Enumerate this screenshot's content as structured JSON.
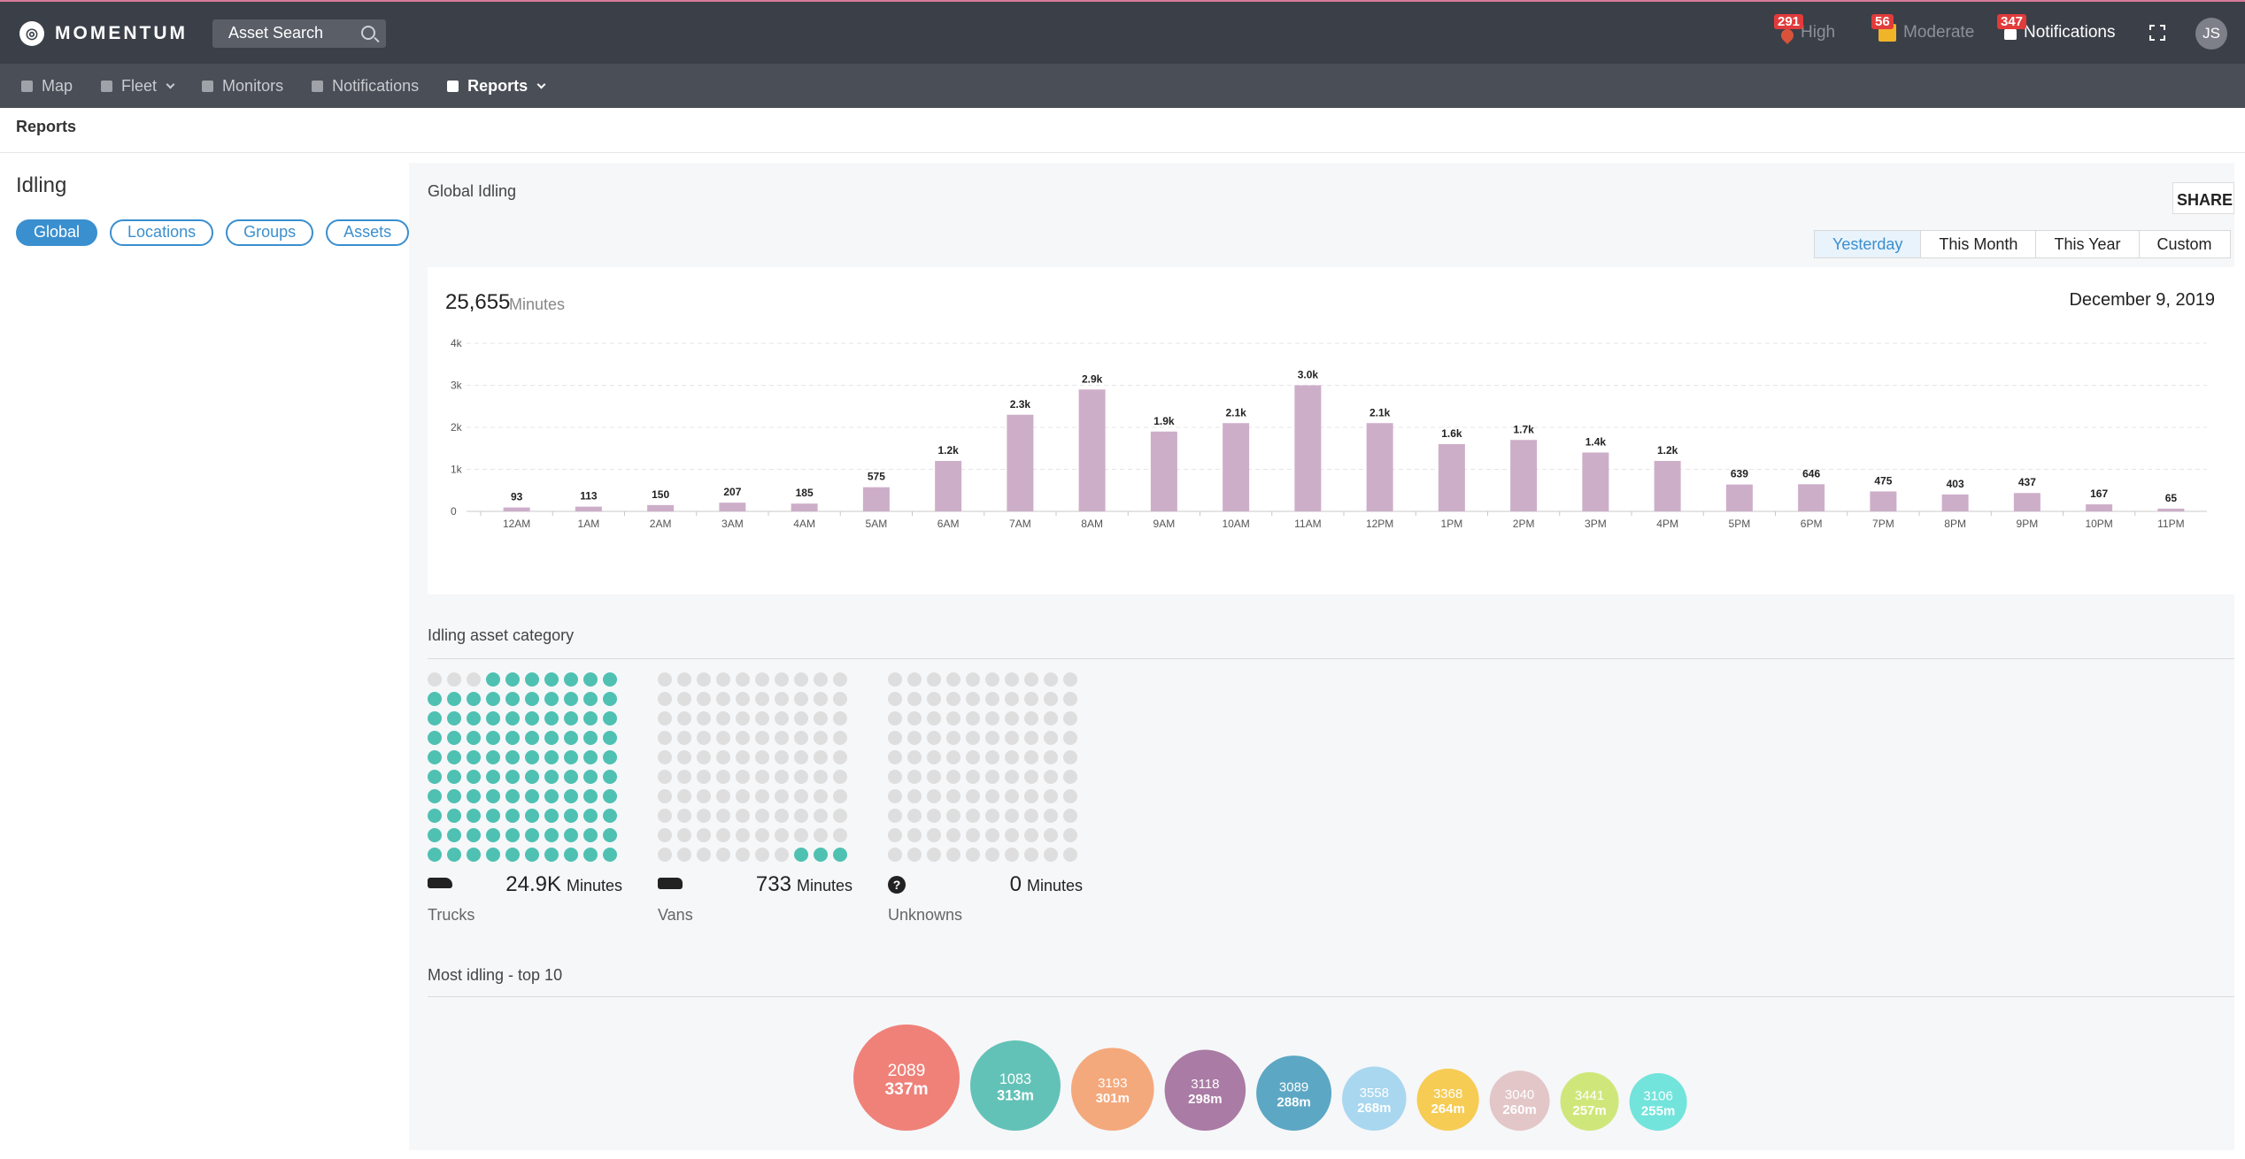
{
  "app": {
    "name": "MOMENTUM"
  },
  "header": {
    "search_label": "Asset Search",
    "alerts": {
      "high": {
        "count": "291",
        "label": "High"
      },
      "moderate": {
        "count": "56",
        "label": "Moderate"
      },
      "notifications": {
        "count": "347",
        "label": "Notifications"
      }
    },
    "avatar_initials": "JS"
  },
  "nav": {
    "items": [
      {
        "label": "Map",
        "icon": "map-icon"
      },
      {
        "label": "Fleet",
        "icon": "car-icon"
      },
      {
        "label": "Monitors",
        "icon": "monitor-icon"
      },
      {
        "label": "Notifications",
        "icon": "bell-icon"
      },
      {
        "label": "Reports",
        "icon": "report-icon"
      }
    ]
  },
  "breadcrumb": "Reports",
  "page": {
    "title": "Idling",
    "filters": [
      "Global",
      "Locations",
      "Groups",
      "Assets"
    ],
    "active_filter": "Global"
  },
  "main": {
    "title": "Global Idling",
    "share_label": "SHARE",
    "ranges": [
      "Yesterday",
      "This Month",
      "This Year",
      "Custom"
    ],
    "active_range": "Yesterday",
    "total_value": "25,655",
    "total_unit": "Minutes",
    "date": "December 9, 2019"
  },
  "chart_data": {
    "type": "bar",
    "categories": [
      "12AM",
      "1AM",
      "2AM",
      "3AM",
      "4AM",
      "5AM",
      "6AM",
      "7AM",
      "8AM",
      "9AM",
      "10AM",
      "11AM",
      "12PM",
      "1PM",
      "2PM",
      "3PM",
      "4PM",
      "5PM",
      "6PM",
      "7PM",
      "8PM",
      "9PM",
      "10PM",
      "11PM"
    ],
    "values": [
      93,
      113,
      150,
      207,
      185,
      575,
      1200,
      2300,
      2900,
      1900,
      2100,
      3000,
      2100,
      1600,
      1700,
      1400,
      1200,
      639,
      646,
      475,
      403,
      437,
      167,
      65
    ],
    "data_labels": [
      "93",
      "113",
      "150",
      "207",
      "185",
      "575",
      "1.2k",
      "2.3k",
      "2.9k",
      "1.9k",
      "2.1k",
      "3.0k",
      "2.1k",
      "1.6k",
      "1.7k",
      "1.4k",
      "1.2k",
      "639",
      "646",
      "475",
      "403",
      "437",
      "167",
      "65"
    ],
    "y_ticks": [
      "0",
      "1k",
      "2k",
      "3k",
      "4k"
    ],
    "ylim": [
      0,
      4000
    ],
    "grid": true,
    "color": "#cdaec9"
  },
  "categories_section": {
    "title": "Idling asset category",
    "items": [
      {
        "name": "Trucks",
        "value": "24.9K",
        "unit": "Minutes",
        "icon": "truck-icon",
        "filled_dots": 97
      },
      {
        "name": "Vans",
        "value": "733",
        "unit": "Minutes",
        "icon": "van-icon",
        "filled_dots": 3
      },
      {
        "name": "Unknowns",
        "value": "0",
        "unit": "Minutes",
        "icon": "question-icon",
        "filled_dots": 0
      }
    ],
    "dot_color": "#4fc1b3"
  },
  "top10": {
    "title": "Most idling - top 10",
    "items": [
      {
        "id": "2089",
        "minutes": 337,
        "label": "337m",
        "color": "#ef8179"
      },
      {
        "id": "1083",
        "minutes": 313,
        "label": "313m",
        "color": "#63c2b7"
      },
      {
        "id": "3193",
        "minutes": 301,
        "label": "301m",
        "color": "#f4a97d"
      },
      {
        "id": "3118",
        "minutes": 298,
        "label": "298m",
        "color": "#aa7ba5"
      },
      {
        "id": "3089",
        "minutes": 288,
        "label": "288m",
        "color": "#5ca7c4"
      },
      {
        "id": "3558",
        "minutes": 268,
        "label": "268m",
        "color": "#a9d7ef"
      },
      {
        "id": "3368",
        "minutes": 264,
        "label": "264m",
        "color": "#f6cc55"
      },
      {
        "id": "3040",
        "minutes": 260,
        "label": "260m",
        "color": "#e3c6c8"
      },
      {
        "id": "3441",
        "minutes": 257,
        "label": "257m",
        "color": "#cfe77a"
      },
      {
        "id": "3106",
        "minutes": 255,
        "label": "255m",
        "color": "#72e4dc"
      }
    ]
  }
}
